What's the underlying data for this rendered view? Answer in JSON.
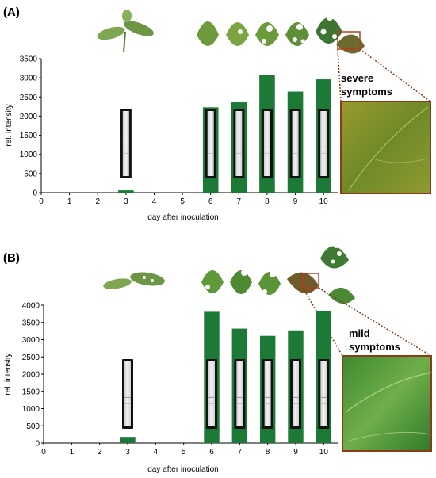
{
  "chart_data": [
    {
      "type": "bar",
      "panel_label": "(A)",
      "categories": [
        "3",
        "6",
        "7",
        "8",
        "9",
        "10"
      ],
      "values": [
        60,
        2230,
        2360,
        3070,
        2640,
        2960
      ],
      "xlabel": "day after inoculation",
      "ylabel": "rel. intensity",
      "xlim": [
        0,
        10.5
      ],
      "ylim": [
        0,
        3500
      ],
      "x_ticks": [
        "0",
        "1",
        "2",
        "3",
        "4",
        "5",
        "6",
        "7",
        "8",
        "9",
        "10"
      ],
      "y_ticks": [
        "0",
        "500",
        "1000",
        "1500",
        "2000",
        "2500",
        "3000",
        "3500"
      ],
      "bar_color": "#1d7a36",
      "callout": "severe symptoms",
      "strip_days": [
        "3",
        "6",
        "7",
        "8",
        "9",
        "10"
      ]
    },
    {
      "type": "bar",
      "panel_label": "(B)",
      "categories": [
        "3",
        "6",
        "7",
        "8",
        "9",
        "10"
      ],
      "values": [
        180,
        3830,
        3320,
        3110,
        3270,
        3840
      ],
      "xlabel": "day after inoculation",
      "ylabel": "rel. intensity",
      "xlim": [
        0,
        10.5
      ],
      "ylim": [
        0,
        4000
      ],
      "x_ticks": [
        "0",
        "1",
        "2",
        "3",
        "4",
        "5",
        "6",
        "7",
        "8",
        "9",
        "10"
      ],
      "y_ticks": [
        "0",
        "500",
        "1000",
        "1500",
        "2000",
        "2500",
        "3000",
        "3500",
        "4000"
      ],
      "bar_color": "#1d7a36",
      "callout": "mild symptoms",
      "strip_days": [
        "3",
        "6",
        "7",
        "8",
        "9",
        "10"
      ]
    }
  ],
  "icons": {
    "seedling": "seedling-image",
    "leaves": "leaf-image",
    "closeup_severe": "leaf-closeup-yellow-mosaic",
    "closeup_mild": "leaf-closeup-green"
  }
}
